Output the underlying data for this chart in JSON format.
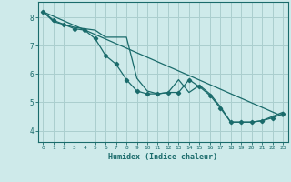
{
  "xlabel": "Humidex (Indice chaleur)",
  "background_color": "#ceeaea",
  "grid_color": "#aacece",
  "line_color": "#1a6b6b",
  "xlim": [
    -0.5,
    23.5
  ],
  "ylim": [
    3.6,
    8.55
  ],
  "yticks": [
    4,
    5,
    6,
    7,
    8
  ],
  "xticks": [
    0,
    1,
    2,
    3,
    4,
    5,
    6,
    7,
    8,
    9,
    10,
    11,
    12,
    13,
    14,
    15,
    16,
    17,
    18,
    19,
    20,
    21,
    22,
    23
  ],
  "series": [
    {
      "x": [
        0,
        23
      ],
      "y": [
        8.2,
        4.5
      ],
      "has_markers": false
    },
    {
      "x": [
        0,
        1,
        2,
        3,
        4,
        5,
        6,
        7,
        8,
        9,
        10,
        11,
        12,
        13,
        14,
        15,
        16,
        17,
        18,
        19,
        20,
        21,
        22,
        23
      ],
      "y": [
        8.2,
        7.9,
        7.75,
        7.6,
        7.55,
        7.25,
        6.65,
        6.35,
        5.8,
        5.4,
        5.3,
        5.3,
        5.35,
        5.35,
        5.8,
        5.55,
        5.25,
        4.8,
        4.3,
        4.3,
        4.3,
        4.35,
        4.45,
        4.6
      ],
      "has_markers": true
    },
    {
      "x": [
        0,
        1,
        2,
        3,
        4,
        5,
        6,
        7,
        8,
        9,
        10,
        11,
        12,
        13,
        14,
        15,
        16,
        17,
        18,
        19,
        20,
        21,
        22,
        23
      ],
      "y": [
        8.2,
        7.85,
        7.75,
        7.65,
        7.6,
        7.55,
        7.3,
        7.3,
        7.3,
        5.85,
        5.4,
        5.3,
        5.35,
        5.8,
        5.35,
        5.6,
        5.3,
        4.85,
        4.3,
        4.3,
        4.3,
        4.35,
        4.5,
        4.65
      ],
      "has_markers": false
    }
  ]
}
